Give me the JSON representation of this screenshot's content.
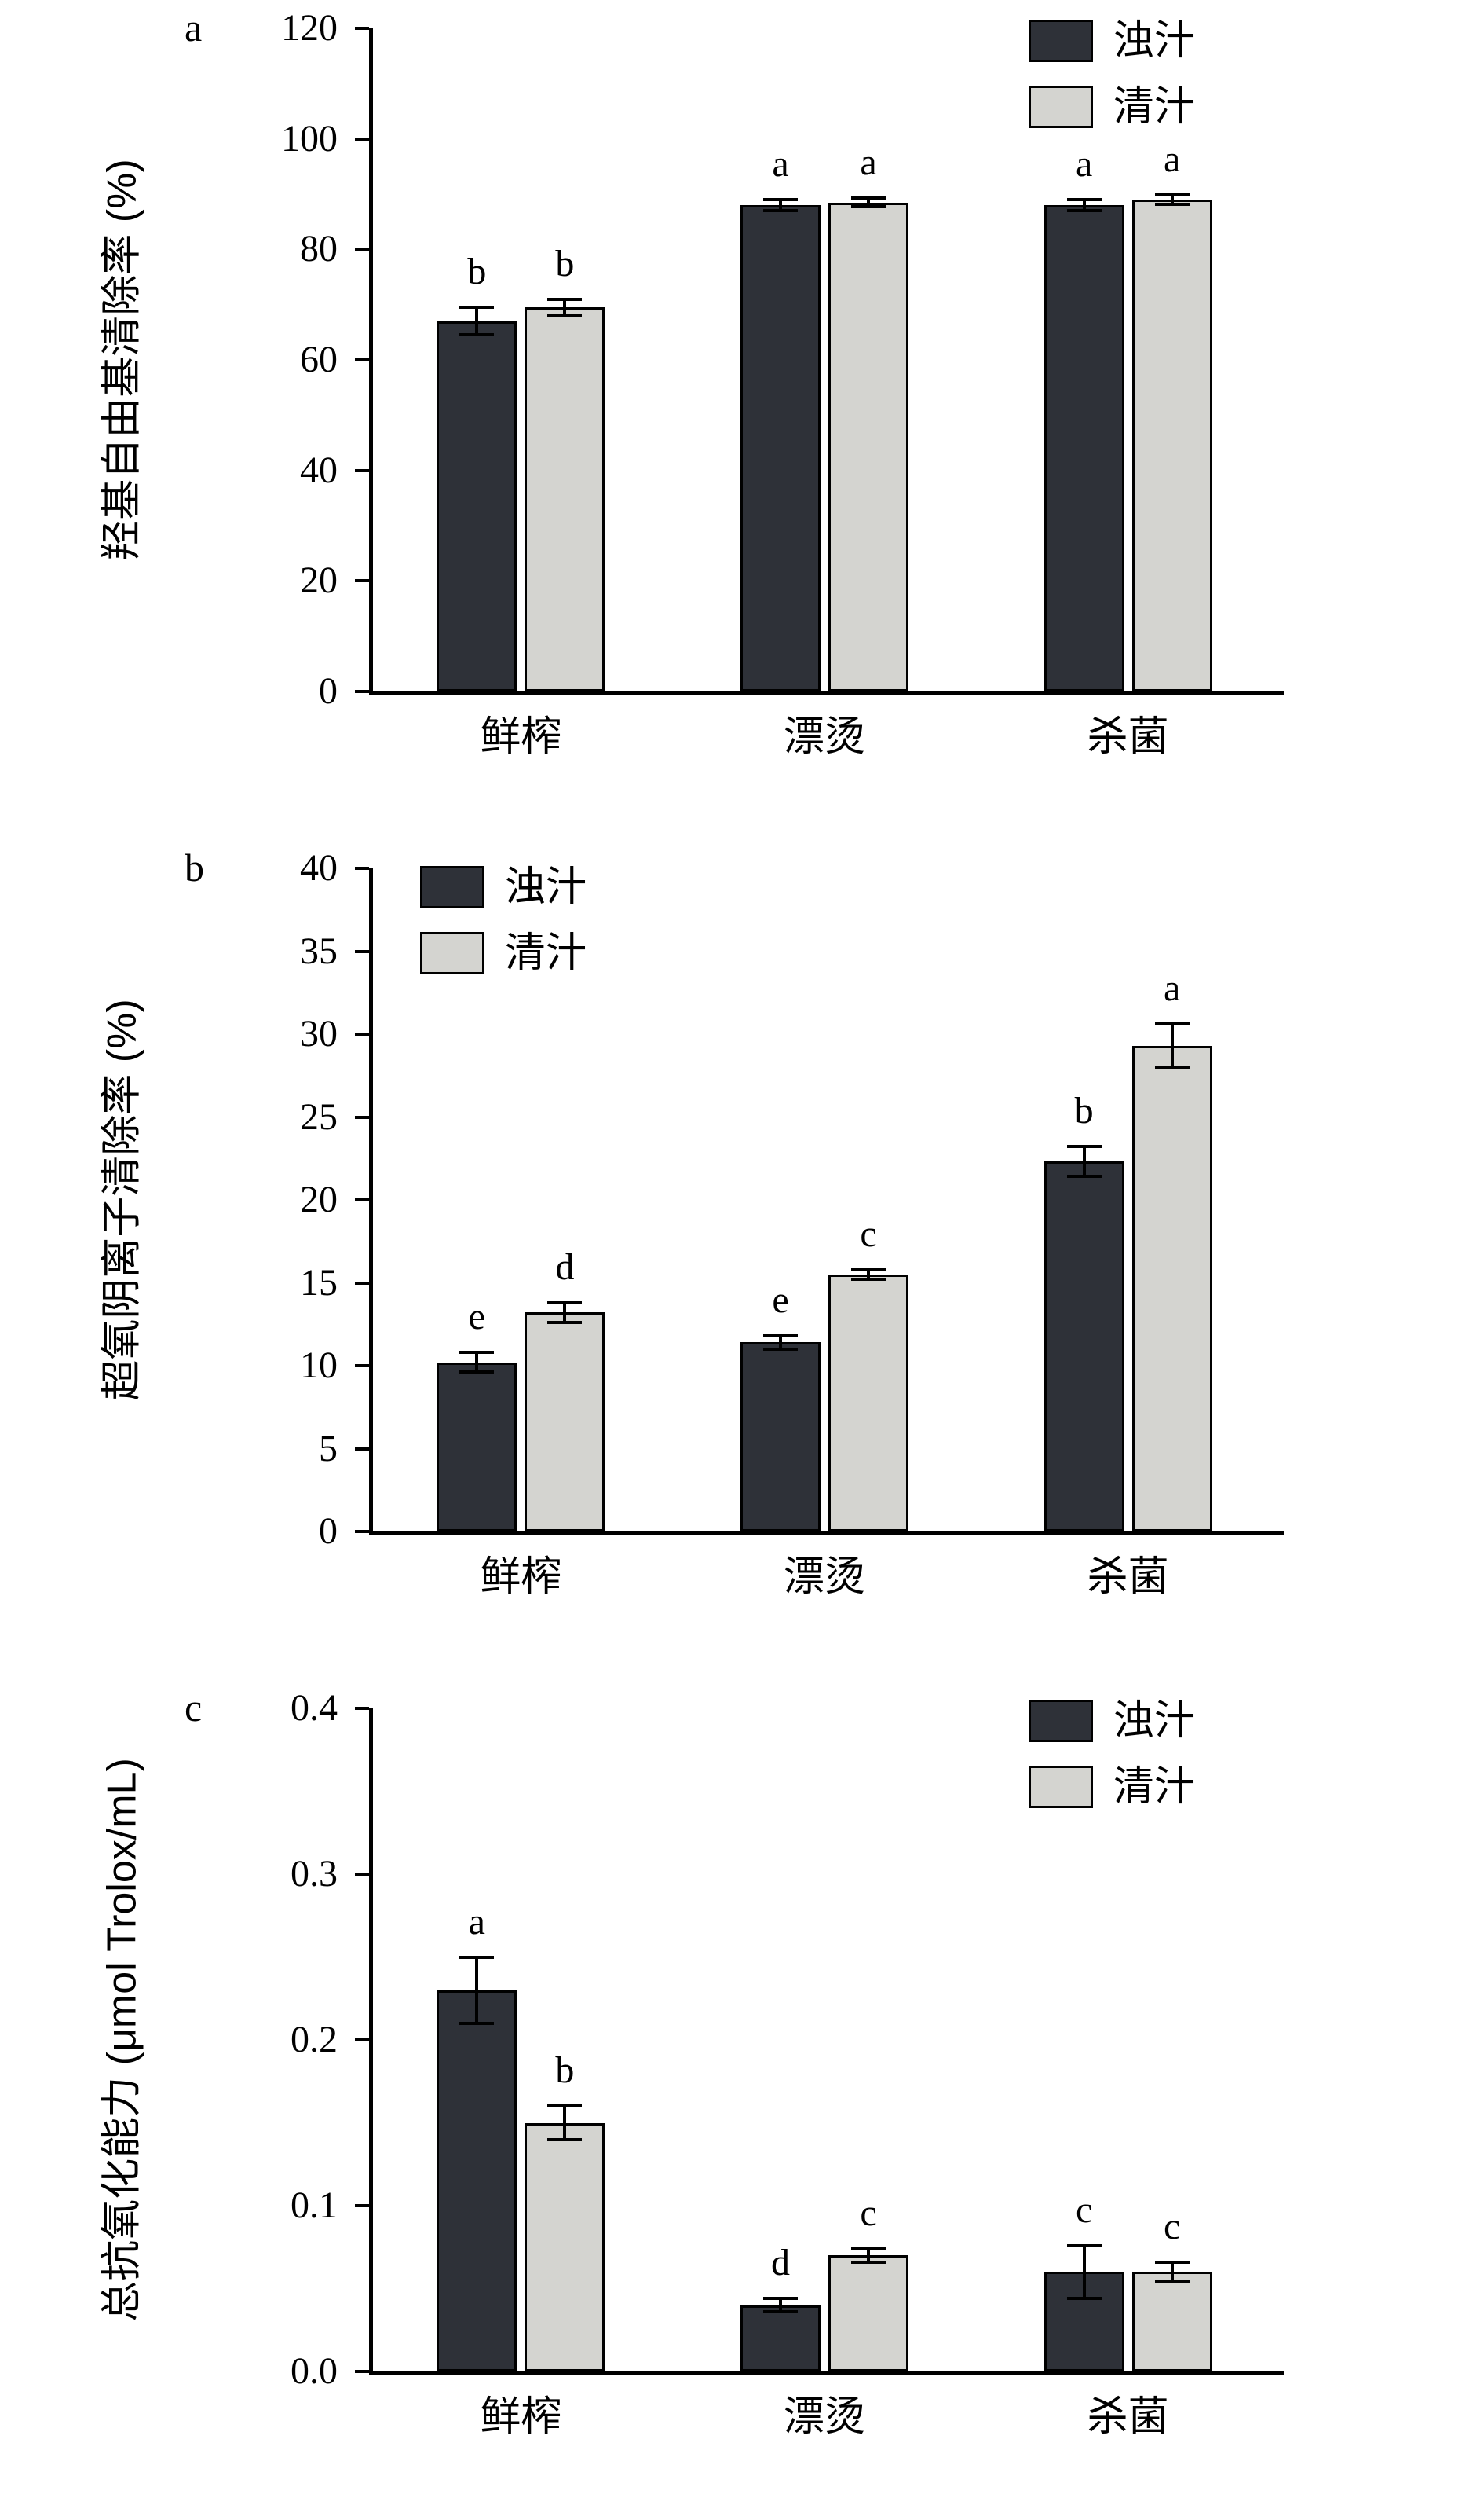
{
  "figure": {
    "background": "#ffffff",
    "series_colors": {
      "dark": "#2e3138",
      "light": "#d4d4d0"
    },
    "bar_border": "#000000",
    "axis_color": "#000000"
  },
  "chart_data": [
    {
      "type": "bar",
      "panel": "a",
      "title": "",
      "xlabel": "",
      "ylabel": "羟基自由基清除率 (%)",
      "ylim": [
        0,
        120
      ],
      "ytick_step": 20,
      "ytick_labels": [
        "0",
        "20",
        "40",
        "60",
        "80",
        "100",
        "120"
      ],
      "categories": [
        "鲜榨",
        "漂烫",
        "杀菌"
      ],
      "grid": false,
      "legend": {
        "position": "top-right",
        "entries": [
          "浊汁",
          "清汁"
        ]
      },
      "series": [
        {
          "name": "浊汁",
          "color_key": "dark",
          "values": [
            67,
            88,
            88
          ],
          "errors": [
            2.5,
            1.0,
            1.0
          ],
          "letters": [
            "b",
            "a",
            "a"
          ]
        },
        {
          "name": "清汁",
          "color_key": "light",
          "values": [
            69.5,
            88.5,
            89
          ],
          "errors": [
            1.5,
            0.8,
            0.8
          ],
          "letters": [
            "b",
            "a",
            "a"
          ]
        }
      ]
    },
    {
      "type": "bar",
      "panel": "b",
      "title": "",
      "xlabel": "",
      "ylabel": "超氧阴离子清除率 (%)",
      "ylim": [
        0,
        40
      ],
      "ytick_step": 5,
      "ytick_labels": [
        "0",
        "5",
        "10",
        "15",
        "20",
        "25",
        "30",
        "35",
        "40"
      ],
      "categories": [
        "鲜榨",
        "漂烫",
        "杀菌"
      ],
      "grid": false,
      "legend": {
        "position": "top-left",
        "entries": [
          "浊汁",
          "清汁"
        ]
      },
      "series": [
        {
          "name": "浊汁",
          "color_key": "dark",
          "values": [
            10.2,
            11.4,
            22.3
          ],
          "errors": [
            0.6,
            0.4,
            0.9
          ],
          "letters": [
            "e",
            "e",
            "b"
          ]
        },
        {
          "name": "清汁",
          "color_key": "light",
          "values": [
            13.2,
            15.5,
            29.3
          ],
          "errors": [
            0.6,
            0.3,
            1.3
          ],
          "letters": [
            "d",
            "c",
            "a"
          ]
        }
      ]
    },
    {
      "type": "bar",
      "panel": "c",
      "title": "",
      "xlabel": "",
      "ylabel": "总抗氧化能力 (μmol Trolox/mL)",
      "ylim": [
        0,
        0.4
      ],
      "ytick_step": 0.1,
      "ytick_labels": [
        "0.0",
        "0.1",
        "0.2",
        "0.3",
        "0.4"
      ],
      "categories": [
        "鲜榨",
        "漂烫",
        "杀菌"
      ],
      "grid": false,
      "legend": {
        "position": "top-right",
        "entries": [
          "浊汁",
          "清汁"
        ]
      },
      "series": [
        {
          "name": "浊汁",
          "color_key": "dark",
          "values": [
            0.23,
            0.04,
            0.06
          ],
          "errors": [
            0.02,
            0.004,
            0.016
          ],
          "letters": [
            "a",
            "d",
            "c"
          ]
        },
        {
          "name": "清汁",
          "color_key": "light",
          "values": [
            0.15,
            0.07,
            0.06
          ],
          "errors": [
            0.01,
            0.004,
            0.006
          ],
          "letters": [
            "b",
            "c",
            "c"
          ]
        }
      ]
    }
  ]
}
